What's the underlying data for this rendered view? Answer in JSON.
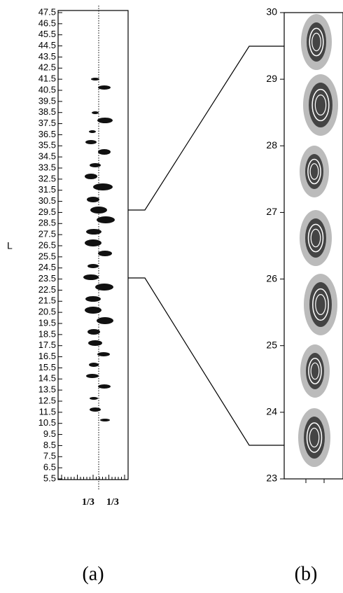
{
  "panel_a": {
    "axis_label": "L",
    "yticks": [
      47.5,
      46.5,
      45.5,
      44.5,
      43.5,
      42.5,
      41.5,
      40.5,
      39.5,
      38.5,
      37.5,
      36.5,
      35.5,
      34.5,
      33.5,
      32.5,
      31.5,
      30.5,
      29.5,
      28.5,
      27.5,
      26.5,
      25.5,
      24.5,
      23.5,
      22.5,
      21.5,
      20.5,
      19.5,
      18.5,
      17.5,
      16.5,
      15.5,
      14.5,
      13.5,
      12.5,
      11.5,
      10.5,
      9.5,
      8.5,
      7.5,
      6.5,
      5.5
    ],
    "xtick_labels": [
      "1/3",
      "1/3"
    ],
    "label": "(a)"
  },
  "panel_b": {
    "yticks": [
      30,
      29,
      28,
      27,
      26,
      25,
      24,
      23
    ],
    "label": "(b)"
  }
}
